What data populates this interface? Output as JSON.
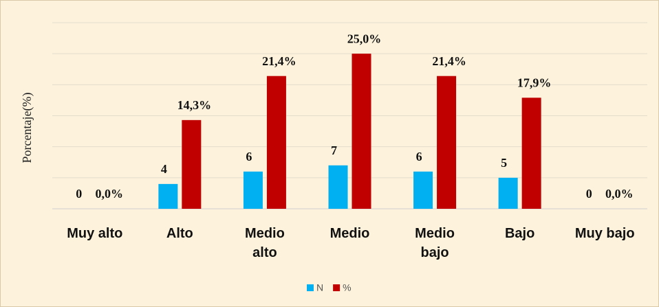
{
  "chart_data": {
    "type": "bar",
    "ylabel": "Porcentaje(%)",
    "categories": [
      "Muy alto",
      "Alto",
      "Medio alto",
      "Medio",
      "Medio bajo",
      "Bajo",
      "Muy bajo"
    ],
    "series": [
      {
        "name": "N",
        "color": "#00b0f0",
        "values": [
          0,
          4,
          6,
          7,
          6,
          5,
          0
        ]
      },
      {
        "name": "%",
        "color": "#c00000",
        "values": [
          0,
          14.3,
          21.4,
          25,
          21.4,
          17.9,
          0
        ],
        "value_labels": [
          "0,0%",
          "14,3%",
          "21,4%",
          "25,0%",
          "21,4%",
          "17,9%",
          "0,0%"
        ]
      }
    ],
    "ylim": [
      0,
      30
    ],
    "yticks": [
      0,
      5,
      10,
      15,
      20,
      25,
      30
    ],
    "grid": true
  }
}
